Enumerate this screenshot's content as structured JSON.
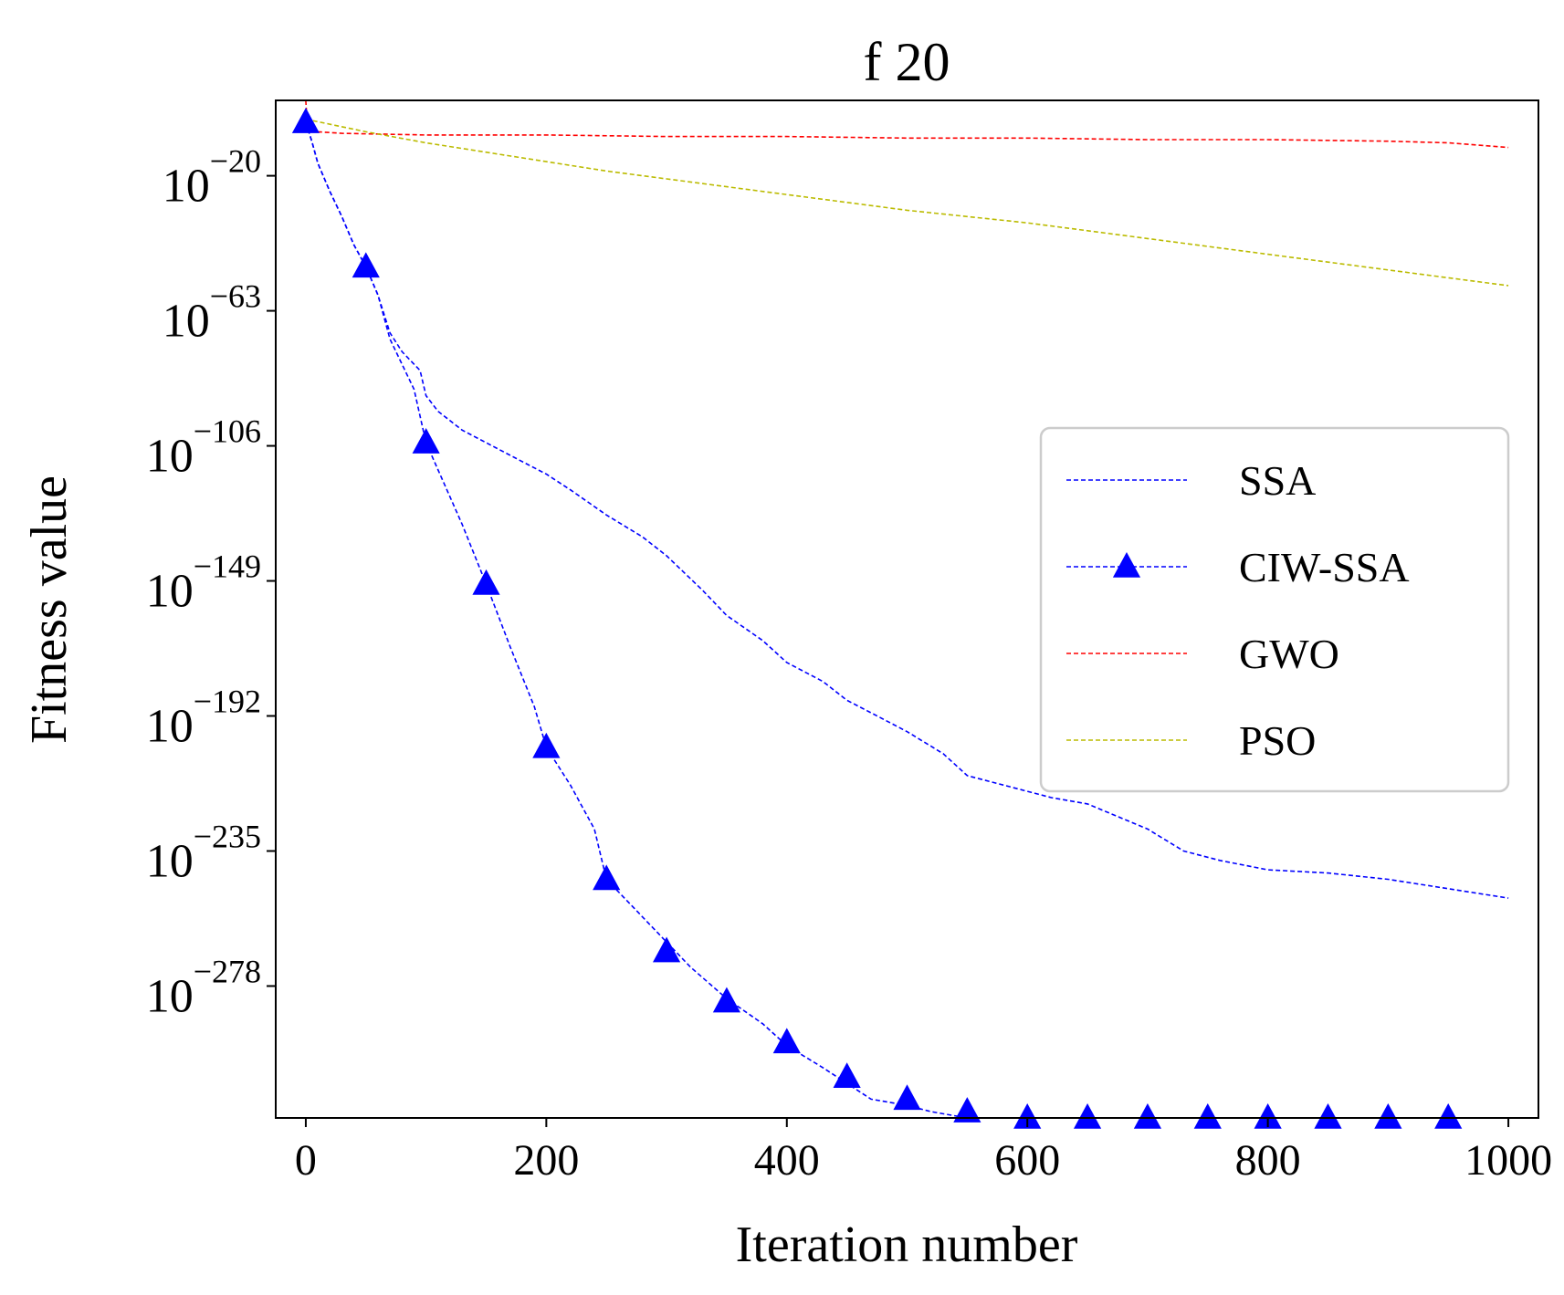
{
  "chart_data": {
    "type": "line",
    "title": "f 20",
    "xlabel": "Iteration number",
    "ylabel": "Fitness value",
    "xlim": [
      -25,
      1025
    ],
    "ylim_exponent": [
      -320,
      4
    ],
    "y_scale": "log",
    "x_ticks": [
      0,
      200,
      400,
      600,
      800,
      1000
    ],
    "x_tick_labels": [
      "0",
      "200",
      "400",
      "600",
      "800",
      "1000"
    ],
    "y_ticks": [
      {
        "base": "10",
        "exponent": "−20",
        "value": -20
      },
      {
        "base": "10",
        "exponent": "−63",
        "value": -63
      },
      {
        "base": "10",
        "exponent": "−106",
        "value": -106
      },
      {
        "base": "10",
        "exponent": "−149",
        "value": -149
      },
      {
        "base": "10",
        "exponent": "−192",
        "value": -192
      },
      {
        "base": "10",
        "exponent": "−235",
        "value": -235
      },
      {
        "base": "10",
        "exponent": "−278",
        "value": -278
      }
    ],
    "grid": false,
    "legend_position": "center-right",
    "series": [
      {
        "name": "SSA",
        "color": "#0000ff",
        "style": "dashed",
        "marker": "none",
        "x": [
          0,
          5,
          10,
          20,
          30,
          40,
          50,
          60,
          70,
          80,
          95,
          100,
          110,
          130,
          150,
          180,
          200,
          220,
          250,
          280,
          300,
          330,
          350,
          380,
          400,
          430,
          450,
          480,
          500,
          530,
          550,
          580,
          620,
          650,
          700,
          730,
          760,
          800,
          850,
          900,
          950,
          1000
        ],
        "y": [
          -3,
          -9,
          -16,
          -25,
          -33,
          -42,
          -49,
          -58,
          -70,
          -76,
          -82,
          -90,
          -95,
          -101,
          -105,
          -111,
          -115,
          -120,
          -128,
          -135,
          -141,
          -152,
          -160,
          -168,
          -175,
          -181,
          -187,
          -193,
          -197,
          -204,
          -211,
          -214,
          -218,
          -220,
          -228,
          -235,
          -238,
          -241,
          -242,
          -244,
          -247,
          -250
        ]
      },
      {
        "name": "CIW-SSA",
        "color": "#0000ff",
        "style": "dashed",
        "marker": "triangle",
        "x": [
          0,
          5,
          10,
          20,
          30,
          40,
          50,
          60,
          70,
          80,
          90,
          100,
          115,
          130,
          150,
          170,
          190,
          200,
          220,
          240,
          250,
          270,
          300,
          320,
          350,
          380,
          400,
          430,
          450,
          470,
          500,
          520,
          550,
          600,
          1000
        ],
        "y": [
          -3,
          -9,
          -16,
          -25,
          -33,
          -42,
          -49,
          -58,
          -72,
          -80,
          -88,
          -105,
          -118,
          -131,
          -150,
          -170,
          -189,
          -202,
          -214,
          -228,
          -244,
          -252,
          -264,
          -272,
          -282,
          -290,
          -297,
          -304,
          -309,
          -314,
          -316,
          -318,
          -320,
          -320,
          -320
        ],
        "markers_x": [
          0,
          50,
          100,
          150,
          200,
          250,
          300,
          350,
          400,
          450,
          500,
          550,
          600,
          650,
          700,
          750,
          800,
          850,
          900,
          950
        ],
        "markers_y": [
          -3,
          -49,
          -105,
          -150,
          -202,
          -244,
          -267,
          -283,
          -296,
          -307,
          -314,
          -318,
          -320,
          -320,
          -320,
          -320,
          -320,
          -320,
          -320,
          -320
        ]
      },
      {
        "name": "GWO",
        "color": "#ff0000",
        "style": "dashed",
        "marker": "none",
        "x": [
          0,
          1,
          2,
          5,
          10,
          30,
          100,
          200,
          300,
          400,
          500,
          600,
          700,
          800,
          900,
          950,
          1000
        ],
        "y": [
          4,
          -2,
          -4,
          -5,
          -6,
          -6.5,
          -7,
          -7,
          -7.5,
          -7.5,
          -8,
          -8,
          -8.5,
          -8.5,
          -9,
          -9.5,
          -11
        ]
      },
      {
        "name": "PSO",
        "color": "#bbbb00",
        "style": "dashed",
        "marker": "none",
        "x": [
          0,
          50,
          100,
          150,
          200,
          250,
          300,
          350,
          400,
          450,
          500,
          550,
          600,
          650,
          700,
          750,
          800,
          850,
          900,
          950,
          1000
        ],
        "y": [
          -2,
          -6,
          -9.5,
          -12.5,
          -15.5,
          -18.5,
          -21,
          -23.5,
          -26,
          -28.5,
          -31,
          -33,
          -35,
          -37.5,
          -40,
          -42.5,
          -45,
          -47.5,
          -50,
          -52.5,
          -55
        ]
      }
    ]
  }
}
